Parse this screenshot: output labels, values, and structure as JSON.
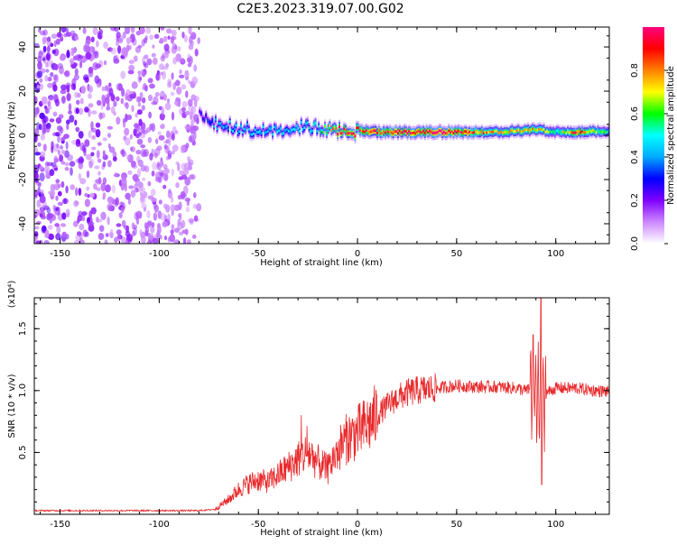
{
  "title": "C2E3.2023.319.07.00.G02",
  "chart_data": [
    {
      "type": "heatmap",
      "xlabel": "Height of straight line (km)",
      "ylabel": "Frequency (Hz)",
      "xlim": [
        -163,
        127
      ],
      "ylim": [
        -49,
        49
      ],
      "xticks": [
        -150,
        -100,
        -50,
        0,
        50,
        100
      ],
      "yticks": [
        -40,
        -20,
        0,
        20,
        40
      ],
      "colorbar": {
        "label": "Normalized spectral amplitude",
        "range": [
          0,
          1
        ],
        "ticks": [
          "0.0",
          "0.2",
          "0.4",
          "0.6",
          "0.8"
        ],
        "colormap": [
          "#ffffff",
          "#cc88ff",
          "#7f00ff",
          "#0000ff",
          "#00aaff",
          "#00ffff",
          "#00ff00",
          "#ffff00",
          "#ff8000",
          "#ff0000",
          "#ff0080"
        ]
      },
      "noise_region_x": [
        -163,
        -80
      ],
      "spectral_ridge": [
        {
          "x": -80,
          "freq": 9,
          "amp": 0.25
        },
        {
          "x": -72,
          "freq": 5,
          "amp": 0.4
        },
        {
          "x": -60,
          "freq": 3,
          "amp": 0.45
        },
        {
          "x": -50,
          "freq": 2,
          "amp": 0.45
        },
        {
          "x": -40,
          "freq": 3,
          "amp": 0.45
        },
        {
          "x": -30,
          "freq": 4,
          "amp": 0.45
        },
        {
          "x": -20,
          "freq": 3,
          "amp": 0.5
        },
        {
          "x": -10,
          "freq": 1.5,
          "amp": 0.85
        },
        {
          "x": 0,
          "freq": 2,
          "amp": 0.9
        },
        {
          "x": 10,
          "freq": 1.5,
          "amp": 0.9
        },
        {
          "x": 30,
          "freq": 1.5,
          "amp": 0.95
        },
        {
          "x": 50,
          "freq": 1.5,
          "amp": 0.95
        },
        {
          "x": 70,
          "freq": 1.5,
          "amp": 0.7
        },
        {
          "x": 90,
          "freq": 2.5,
          "amp": 0.75
        },
        {
          "x": 100,
          "freq": 1.5,
          "amp": 0.55
        },
        {
          "x": 110,
          "freq": 1.5,
          "amp": 0.9
        },
        {
          "x": 127,
          "freq": 2,
          "amp": 0.5
        }
      ]
    },
    {
      "type": "line",
      "xlabel": "Height of straight line (km)",
      "ylabel": "SNR (10 * v/v)",
      "yscale_note": "(x10⁴)",
      "xlim": [
        -163,
        127
      ],
      "ylim": [
        0,
        17500
      ],
      "xticks": [
        -150,
        -100,
        -50,
        0,
        50,
        100
      ],
      "yticks": [
        5000,
        10000,
        15000
      ],
      "ytick_labels": [
        "0.5",
        "1.0",
        "1.5"
      ],
      "color": "#e8292b",
      "series": [
        {
          "x": [
            -163,
            -140,
            -110,
            -80,
            -72,
            -65,
            -60,
            -55,
            -50,
            -45,
            -40,
            -35,
            -30,
            -25,
            -20,
            -15,
            -10,
            -5,
            0,
            5,
            10,
            15,
            20,
            25,
            30,
            40,
            50,
            60,
            70,
            80,
            85,
            90,
            92,
            95,
            100,
            110,
            120,
            127
          ],
          "y": [
            300,
            300,
            300,
            300,
            400,
            1200,
            2000,
            2500,
            2800,
            2600,
            3200,
            3800,
            4500,
            5000,
            4200,
            3600,
            5200,
            6200,
            6600,
            7200,
            8000,
            8800,
            9400,
            9800,
            10000,
            10200,
            10400,
            10300,
            10300,
            10200,
            10000,
            10200,
            9000,
            9800,
            10200,
            10200,
            10000,
            9900
          ]
        }
      ]
    }
  ]
}
